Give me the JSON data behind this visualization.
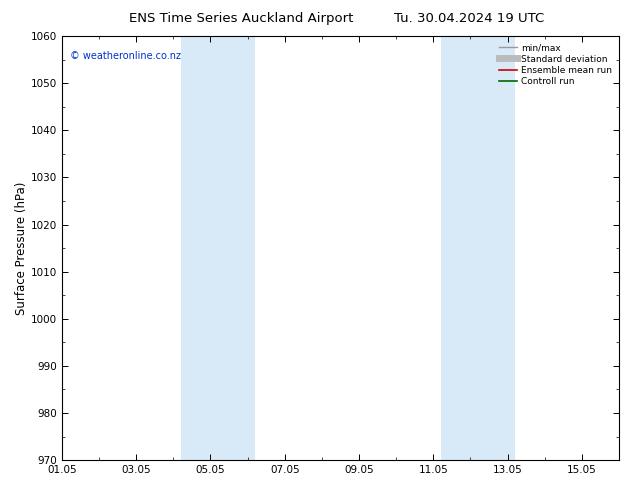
{
  "title_left": "ENS Time Series Auckland Airport",
  "title_right": "Tu. 30.04.2024 19 UTC",
  "ylabel": "Surface Pressure (hPa)",
  "ylim": [
    970,
    1060
  ],
  "yticks": [
    970,
    980,
    990,
    1000,
    1010,
    1020,
    1030,
    1040,
    1050,
    1060
  ],
  "xstart_days": 0,
  "xend_days": 15,
  "xtick_labels": [
    "01.05",
    "03.05",
    "05.05",
    "07.05",
    "09.05",
    "11.05",
    "13.05",
    "15.05"
  ],
  "xtick_positions_days": [
    0,
    2,
    4,
    6,
    8,
    10,
    12,
    14
  ],
  "shaded_bands": [
    {
      "xstart_days": 3.2,
      "xend_days": 5.2
    },
    {
      "xstart_days": 10.2,
      "xend_days": 12.2
    }
  ],
  "shade_color": "#d8eaf7",
  "background_color": "#ffffff",
  "copyright_text": "© weatheronline.co.nz",
  "copyright_color": "#0033cc",
  "legend_items": [
    {
      "label": "min/max",
      "color": "#999999",
      "lw": 1.0
    },
    {
      "label": "Standard deviation",
      "color": "#bbbbbb",
      "lw": 5.0
    },
    {
      "label": "Ensemble mean run",
      "color": "#cc0000",
      "lw": 1.2
    },
    {
      "label": "Controll run",
      "color": "#006600",
      "lw": 1.2
    }
  ],
  "axis_color": "#000000",
  "tick_fontsize": 7.5,
  "label_fontsize": 8.5,
  "title_fontsize": 9.5
}
